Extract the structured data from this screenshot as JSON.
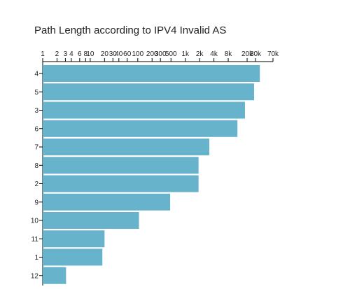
{
  "chart_data": {
    "type": "bar",
    "orientation": "horizontal",
    "title": "Path Length according to IPV4 Invalid AS",
    "xlabel": "",
    "ylabel": "",
    "x_scale": "log",
    "x_axis_position": "top",
    "xlim": [
      1,
      70000
    ],
    "x_ticks": [
      1,
      2,
      3,
      4,
      6,
      8,
      10,
      20,
      30,
      40,
      60,
      100,
      200,
      300,
      500,
      1000,
      2000,
      4000,
      8000,
      20000,
      30000,
      70000
    ],
    "x_tick_labels": [
      "1",
      "2",
      "3",
      "4",
      "6",
      "8",
      "10",
      "20",
      "30",
      "40",
      "60",
      "100",
      "200",
      "300",
      "500",
      "1k",
      "2k",
      "4k",
      "8k",
      "20k",
      "30k",
      "70k"
    ],
    "categories": [
      "4",
      "5",
      "3",
      "6",
      "7",
      "8",
      "2",
      "9",
      "10",
      "11",
      "1",
      "12"
    ],
    "values": [
      37000,
      28000,
      18000,
      12500,
      3200,
      1900,
      1900,
      480,
      106,
      20,
      18,
      3.1
    ],
    "bar_color": "#67b3cb",
    "grid": false,
    "legend": "none"
  }
}
